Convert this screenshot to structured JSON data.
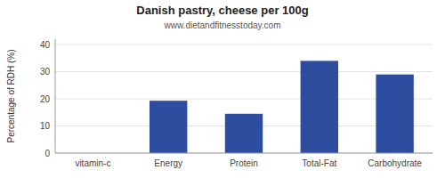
{
  "chart_data": {
    "type": "bar",
    "title": "Danish pastry, cheese per 100g",
    "subtitle": "www.dietandfitnesstoday.com",
    "categories": [
      "vitamin-c",
      "Energy",
      "Protein",
      "Total-Fat",
      "Carbohydrate"
    ],
    "values": [
      0,
      19.3,
      14.5,
      34.0,
      29.0
    ],
    "color": "#2e4d9e",
    "ylabel": "Percentage of RDH (%)",
    "ylim": [
      0,
      42
    ],
    "yticks": [
      0,
      10,
      20,
      30,
      40
    ],
    "grid": true
  }
}
